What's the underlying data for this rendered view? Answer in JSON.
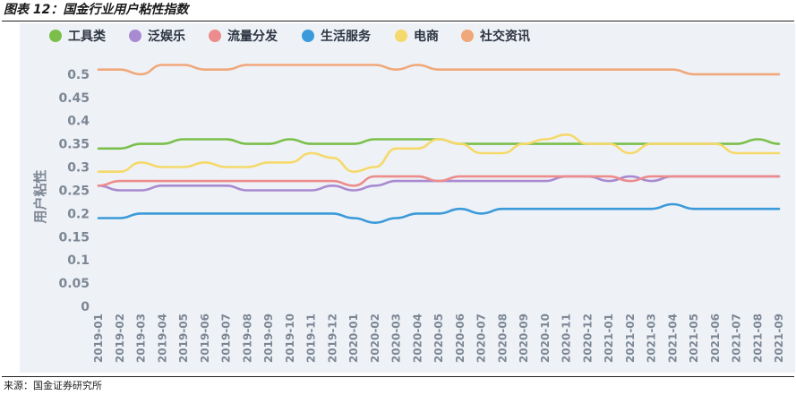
{
  "figure": {
    "title": "图表 12：国金行业用户粘性指数",
    "source": "来源：国金证券研究所"
  },
  "chart_data": {
    "type": "line",
    "ylabel": "用户粘性",
    "xlabel": "",
    "ylim": [
      0,
      0.5
    ],
    "yticks": [
      0,
      0.05,
      0.1,
      0.15,
      0.2,
      0.25,
      0.3,
      0.35,
      0.4,
      0.45,
      0.5
    ],
    "ytick_labels": [
      "0",
      "0.05",
      "0.1",
      "0.15",
      "0.2",
      "0.25",
      "0.3",
      "0.35",
      "0.4",
      "0.45",
      "0.5"
    ],
    "grid": false,
    "legend_position": "top",
    "categories": [
      "2019-01",
      "2019-02",
      "2019-03",
      "2019-04",
      "2019-05",
      "2019-06",
      "2019-07",
      "2019-08",
      "2019-09",
      "2019-10",
      "2019-11",
      "2019-12",
      "2020-01",
      "2020-02",
      "2020-03",
      "2020-04",
      "2020-05",
      "2020-06",
      "2020-07",
      "2020-08",
      "2020-09",
      "2020-10",
      "2020-11",
      "2020-12",
      "2021-01",
      "2021-02",
      "2021-03",
      "2021-04",
      "2021-05",
      "2021-06",
      "2021-07",
      "2021-08",
      "2021-09"
    ],
    "series": [
      {
        "name": "工具类",
        "color": "#7bbf4a",
        "values": [
          0.34,
          0.34,
          0.35,
          0.35,
          0.36,
          0.36,
          0.36,
          0.35,
          0.35,
          0.36,
          0.35,
          0.35,
          0.35,
          0.36,
          0.36,
          0.36,
          0.36,
          0.35,
          0.35,
          0.35,
          0.35,
          0.35,
          0.35,
          0.35,
          0.35,
          0.35,
          0.35,
          0.35,
          0.35,
          0.35,
          0.35,
          0.36,
          0.35
        ]
      },
      {
        "name": "泛娱乐",
        "color": "#a98ad0",
        "values": [
          0.26,
          0.25,
          0.25,
          0.26,
          0.26,
          0.26,
          0.26,
          0.25,
          0.25,
          0.25,
          0.25,
          0.26,
          0.25,
          0.26,
          0.27,
          0.27,
          0.27,
          0.27,
          0.27,
          0.27,
          0.27,
          0.27,
          0.28,
          0.28,
          0.27,
          0.28,
          0.27,
          0.28,
          0.28,
          0.28,
          0.28,
          0.28,
          0.28
        ]
      },
      {
        "name": "流量分发",
        "color": "#ec8c8c",
        "values": [
          0.26,
          0.27,
          0.27,
          0.27,
          0.27,
          0.27,
          0.27,
          0.27,
          0.27,
          0.27,
          0.27,
          0.27,
          0.26,
          0.28,
          0.28,
          0.28,
          0.27,
          0.28,
          0.28,
          0.28,
          0.28,
          0.28,
          0.28,
          0.28,
          0.28,
          0.27,
          0.28,
          0.28,
          0.28,
          0.28,
          0.28,
          0.28,
          0.28
        ]
      },
      {
        "name": "生活服务",
        "color": "#3b9ad9",
        "values": [
          0.19,
          0.19,
          0.2,
          0.2,
          0.2,
          0.2,
          0.2,
          0.2,
          0.2,
          0.2,
          0.2,
          0.2,
          0.19,
          0.18,
          0.19,
          0.2,
          0.2,
          0.21,
          0.2,
          0.21,
          0.21,
          0.21,
          0.21,
          0.21,
          0.21,
          0.21,
          0.21,
          0.22,
          0.21,
          0.21,
          0.21,
          0.21,
          0.21
        ]
      },
      {
        "name": "电商",
        "color": "#f5d96a",
        "values": [
          0.29,
          0.29,
          0.31,
          0.3,
          0.3,
          0.31,
          0.3,
          0.3,
          0.31,
          0.31,
          0.33,
          0.32,
          0.29,
          0.3,
          0.34,
          0.34,
          0.36,
          0.35,
          0.33,
          0.33,
          0.35,
          0.36,
          0.37,
          0.35,
          0.35,
          0.33,
          0.35,
          0.35,
          0.35,
          0.35,
          0.33,
          0.33,
          0.33
        ]
      },
      {
        "name": "社交资讯",
        "color": "#f0a77a",
        "values": [
          0.51,
          0.51,
          0.5,
          0.52,
          0.52,
          0.51,
          0.51,
          0.52,
          0.52,
          0.52,
          0.52,
          0.52,
          0.52,
          0.52,
          0.51,
          0.52,
          0.51,
          0.51,
          0.51,
          0.51,
          0.51,
          0.51,
          0.51,
          0.51,
          0.51,
          0.51,
          0.51,
          0.51,
          0.5,
          0.5,
          0.5,
          0.5,
          0.5
        ]
      }
    ]
  }
}
